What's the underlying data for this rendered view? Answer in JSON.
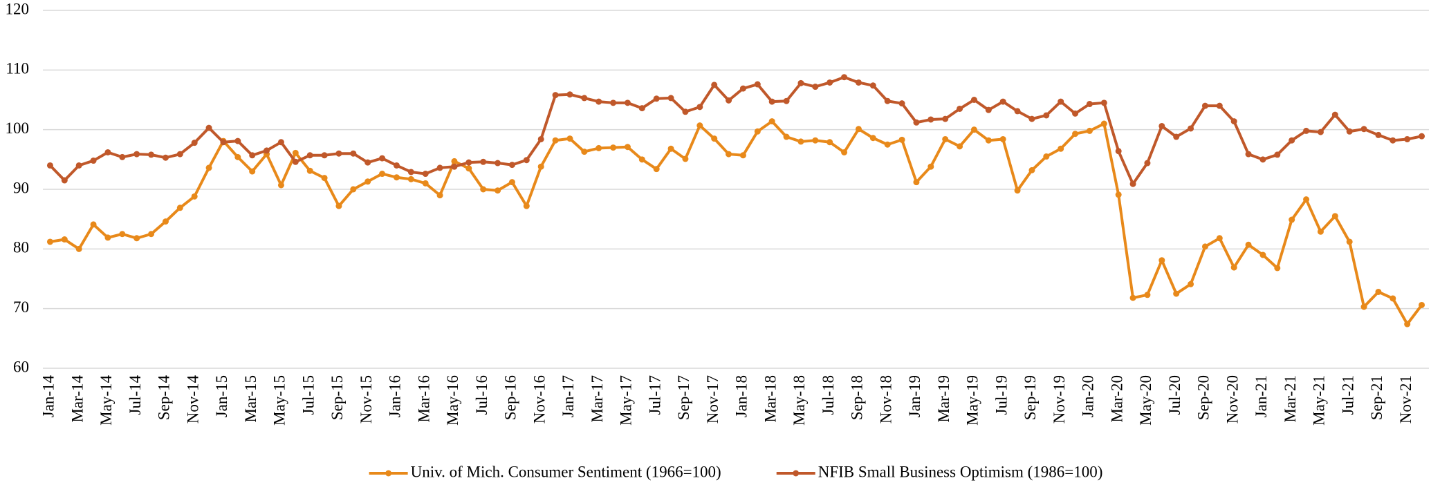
{
  "chart_data": {
    "type": "line",
    "categories": [
      "Jan-14",
      null,
      "Mar-14",
      null,
      "May-14",
      null,
      "Jul-14",
      null,
      "Sep-14",
      null,
      "Nov-14",
      null,
      "Jan-15",
      null,
      "Mar-15",
      null,
      "May-15",
      null,
      "Jul-15",
      null,
      "Sep-15",
      null,
      "Nov-15",
      null,
      "Jan-16",
      null,
      "Mar-16",
      null,
      "May-16",
      null,
      "Jul-16",
      null,
      "Sep-16",
      null,
      "Nov-16",
      null,
      "Jan-17",
      null,
      "Mar-17",
      null,
      "May-17",
      null,
      "Jul-17",
      null,
      "Sep-17",
      null,
      "Nov-17",
      null,
      "Jan-18",
      null,
      "Mar-18",
      null,
      "May-18",
      null,
      "Jul-18",
      null,
      "Sep-18",
      null,
      "Nov-18",
      null,
      "Jan-19",
      null,
      "Mar-19",
      null,
      "May-19",
      null,
      "Jul-19",
      null,
      "Sep-19",
      null,
      "Nov-19",
      null,
      "Jan-20",
      null,
      "Mar-20",
      null,
      "May-20",
      null,
      "Jul-20",
      null,
      "Sep-20",
      null,
      "Nov-20",
      null,
      "Jan-21",
      null,
      "Mar-21",
      null,
      "May-21",
      null,
      "Jul-21",
      null,
      "Sep-21",
      null,
      "Nov-21",
      null
    ],
    "series": [
      {
        "name": "Univ. of Mich. Consumer Sentiment (1966=100)",
        "color": "#e8891a",
        "values": [
          81.2,
          81.6,
          80.0,
          84.1,
          81.9,
          82.5,
          81.8,
          82.5,
          84.6,
          86.9,
          88.8,
          93.6,
          98.1,
          95.4,
          93.0,
          95.9,
          90.7,
          96.1,
          93.1,
          91.9,
          87.2,
          90.0,
          91.3,
          92.6,
          92.0,
          91.7,
          91.0,
          89.0,
          94.7,
          93.5,
          90.0,
          89.8,
          91.2,
          87.2,
          93.8,
          98.2,
          98.5,
          96.3,
          96.9,
          97.0,
          97.1,
          95.0,
          93.4,
          96.8,
          95.1,
          100.7,
          98.5,
          95.9,
          95.7,
          99.7,
          101.4,
          98.8,
          98.0,
          98.2,
          97.9,
          96.2,
          100.1,
          98.6,
          97.5,
          98.3,
          91.2,
          93.8,
          98.4,
          97.2,
          100.0,
          98.2,
          98.4,
          89.8,
          93.2,
          95.5,
          96.8,
          99.3,
          99.8,
          101.0,
          89.1,
          71.8,
          72.3,
          78.1,
          72.5,
          74.1,
          80.4,
          81.8,
          76.9,
          80.7,
          79.0,
          76.8,
          84.9,
          88.3,
          82.9,
          85.5,
          81.2,
          70.3,
          72.8,
          71.7,
          67.4,
          70.6
        ]
      },
      {
        "name": "NFIB Small Business Optimism (1986=100)",
        "color": "#c0582a",
        "values": [
          94.0,
          91.5,
          94.0,
          94.8,
          96.2,
          95.4,
          95.9,
          95.8,
          95.3,
          95.9,
          97.8,
          100.3,
          97.9,
          98.1,
          95.7,
          96.5,
          97.9,
          94.6,
          95.7,
          95.7,
          96.0,
          96.0,
          94.5,
          95.2,
          94.0,
          92.9,
          92.6,
          93.6,
          93.8,
          94.5,
          94.6,
          94.4,
          94.1,
          94.9,
          98.4,
          105.8,
          105.9,
          105.3,
          104.7,
          104.5,
          104.5,
          103.6,
          105.2,
          105.3,
          103.0,
          103.8,
          107.5,
          104.9,
          106.9,
          107.6,
          104.7,
          104.8,
          107.8,
          107.2,
          107.9,
          108.8,
          107.9,
          107.4,
          104.8,
          104.4,
          101.2,
          101.7,
          101.8,
          103.5,
          105.0,
          103.3,
          104.7,
          103.1,
          101.8,
          102.4,
          104.7,
          102.7,
          104.3,
          104.5,
          96.4,
          90.9,
          94.4,
          100.6,
          98.8,
          100.2,
          104.0,
          104.0,
          101.4,
          95.9,
          95.0,
          95.8,
          98.2,
          99.8,
          99.6,
          102.5,
          99.7,
          100.1,
          99.1,
          98.2,
          98.4,
          98.9
        ]
      }
    ],
    "ylim": [
      60,
      120
    ],
    "yticks": [
      60,
      70,
      80,
      90,
      100,
      110,
      120
    ],
    "grid": true,
    "legend": "bottom"
  }
}
